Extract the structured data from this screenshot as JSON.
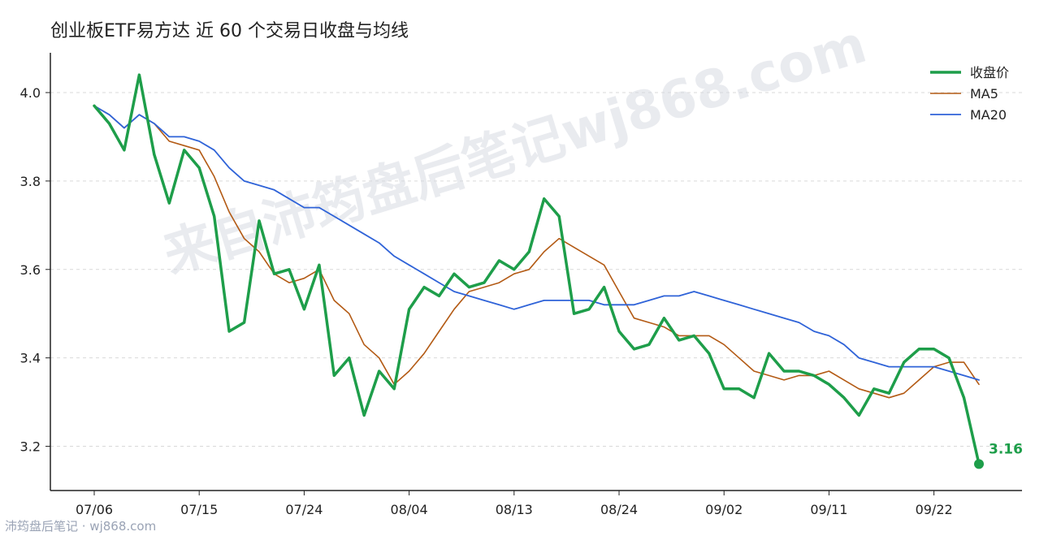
{
  "chart_data": {
    "type": "line",
    "title": "创业板ETF易方达 近 60 个交易日收盘与均线",
    "xlabel": "",
    "ylabel": "",
    "ylim": [
      3.1,
      4.09
    ],
    "yticks": [
      "3.2",
      "3.4",
      "3.6",
      "3.8",
      "4.0"
    ],
    "xtick_labels": [
      "07/06",
      "07/15",
      "07/24",
      "08/04",
      "08/13",
      "08/24",
      "09/02",
      "09/11",
      "09/22"
    ],
    "xtick_index": [
      0,
      7,
      14,
      21,
      28,
      35,
      42,
      49,
      56
    ],
    "grid": "horizontal dashed",
    "legend_position": "top-right",
    "series": [
      {
        "name": "收盘价",
        "color": "#1e9e4a",
        "values": [
          3.97,
          3.93,
          3.87,
          4.04,
          3.86,
          3.75,
          3.87,
          3.83,
          3.72,
          3.46,
          3.48,
          3.71,
          3.59,
          3.6,
          3.51,
          3.61,
          3.36,
          3.4,
          3.27,
          3.37,
          3.33,
          3.51,
          3.56,
          3.54,
          3.59,
          3.56,
          3.57,
          3.62,
          3.6,
          3.64,
          3.76,
          3.72,
          3.5,
          3.51,
          3.56,
          3.46,
          3.42,
          3.43,
          3.49,
          3.44,
          3.45,
          3.41,
          3.33,
          3.33,
          3.31,
          3.41,
          3.37,
          3.37,
          3.36,
          3.34,
          3.31,
          3.27,
          3.33,
          3.32,
          3.39,
          3.42,
          3.42,
          3.4,
          3.31,
          3.16
        ]
      },
      {
        "name": "MA5",
        "color": "#b35a14",
        "values": [
          3.97,
          3.95,
          3.92,
          3.95,
          3.93,
          3.89,
          3.88,
          3.87,
          3.81,
          3.73,
          3.67,
          3.64,
          3.59,
          3.57,
          3.58,
          3.6,
          3.53,
          3.5,
          3.43,
          3.4,
          3.34,
          3.37,
          3.41,
          3.46,
          3.51,
          3.55,
          3.56,
          3.57,
          3.59,
          3.6,
          3.64,
          3.67,
          3.65,
          3.63,
          3.61,
          3.55,
          3.49,
          3.48,
          3.47,
          3.45,
          3.45,
          3.45,
          3.43,
          3.4,
          3.37,
          3.36,
          3.35,
          3.36,
          3.36,
          3.37,
          3.35,
          3.33,
          3.32,
          3.31,
          3.32,
          3.35,
          3.38,
          3.39,
          3.39,
          3.34
        ]
      },
      {
        "name": "MA20",
        "color": "#2f63d8",
        "values": [
          3.97,
          3.95,
          3.92,
          3.95,
          3.93,
          3.9,
          3.9,
          3.89,
          3.87,
          3.83,
          3.8,
          3.79,
          3.78,
          3.76,
          3.74,
          3.74,
          3.72,
          3.7,
          3.68,
          3.66,
          3.63,
          3.61,
          3.59,
          3.57,
          3.55,
          3.54,
          3.53,
          3.52,
          3.51,
          3.52,
          3.53,
          3.53,
          3.53,
          3.53,
          3.52,
          3.52,
          3.52,
          3.53,
          3.54,
          3.54,
          3.55,
          3.54,
          3.53,
          3.52,
          3.51,
          3.5,
          3.49,
          3.48,
          3.46,
          3.45,
          3.43,
          3.4,
          3.39,
          3.38,
          3.38,
          3.38,
          3.38,
          3.37,
          3.36,
          3.35
        ]
      }
    ],
    "last_value_label": "3.16"
  },
  "watermark": "来自沛筠盘后笔记wj868.com",
  "footer_credit": "沛筠盘后笔记 · wj868.com"
}
